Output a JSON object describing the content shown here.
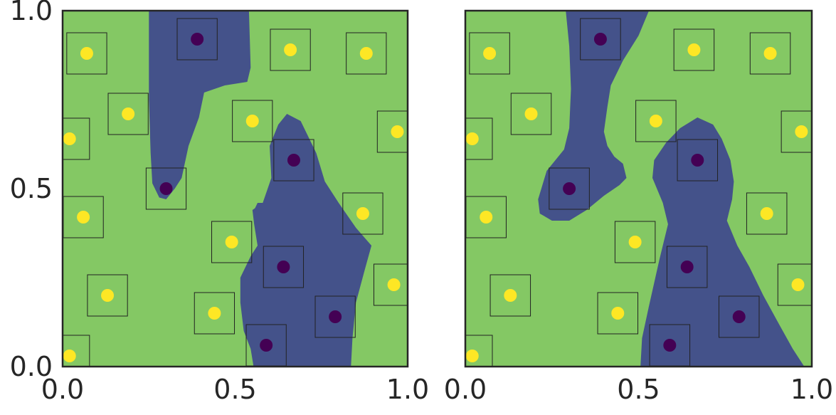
{
  "chart_data": [
    {
      "type": "scatter",
      "xlim": [
        0.0,
        1.0
      ],
      "ylim": [
        0.0,
        1.0
      ],
      "xticks": [
        "0.0",
        "0.5",
        "1.0"
      ],
      "yticks": [
        "0.0",
        "0.5",
        "1.0"
      ],
      "grid": false,
      "region_colors": {
        "positive": "#84c864",
        "negative": "#44528a"
      },
      "point_colors": {
        "positive": "#fde725",
        "negative": "#440154"
      },
      "regions": [
        [
          [
            0.25,
            1.0
          ],
          [
            0.54,
            1.0
          ],
          [
            0.545,
            0.84
          ],
          [
            0.535,
            0.8
          ],
          [
            0.47,
            0.79
          ],
          [
            0.41,
            0.77
          ],
          [
            0.395,
            0.7
          ],
          [
            0.365,
            0.62
          ],
          [
            0.345,
            0.53
          ],
          [
            0.325,
            0.5
          ],
          [
            0.3,
            0.47
          ],
          [
            0.28,
            0.475
          ],
          [
            0.26,
            0.515
          ],
          [
            0.255,
            0.6
          ],
          [
            0.25,
            0.75
          ]
        ],
        [
          [
            0.65,
            0.71
          ],
          [
            0.69,
            0.69
          ],
          [
            0.735,
            0.6
          ],
          [
            0.76,
            0.52
          ],
          [
            0.8,
            0.46
          ],
          [
            0.85,
            0.39
          ],
          [
            0.895,
            0.34
          ],
          [
            0.875,
            0.27
          ],
          [
            0.85,
            0.18
          ],
          [
            0.84,
            0.08
          ],
          [
            0.835,
            -0.01
          ],
          [
            0.555,
            -0.01
          ],
          [
            0.545,
            0.05
          ],
          [
            0.525,
            0.1
          ],
          [
            0.515,
            0.18
          ],
          [
            0.515,
            0.25
          ],
          [
            0.545,
            0.31
          ],
          [
            0.565,
            0.34
          ],
          [
            0.555,
            0.4
          ],
          [
            0.55,
            0.44
          ],
          [
            0.58,
            0.46
          ],
          [
            0.605,
            0.53
          ],
          [
            0.6,
            0.62
          ],
          [
            0.625,
            0.68
          ]
        ],
        [
          [
            0.6,
            0.46
          ],
          [
            0.585,
            0.44
          ],
          [
            0.555,
            0.44
          ],
          [
            0.565,
            0.46
          ]
        ]
      ],
      "points": [
        {
          "x": 0.07,
          "y": 0.88,
          "label": "positive"
        },
        {
          "x": 0.19,
          "y": 0.71,
          "label": "positive"
        },
        {
          "x": 0.02,
          "y": 0.64,
          "label": "positive"
        },
        {
          "x": 0.06,
          "y": 0.42,
          "label": "positive"
        },
        {
          "x": 0.13,
          "y": 0.2,
          "label": "positive"
        },
        {
          "x": 0.02,
          "y": 0.03,
          "label": "positive"
        },
        {
          "x": 0.39,
          "y": 0.92,
          "label": "negative"
        },
        {
          "x": 0.3,
          "y": 0.5,
          "label": "negative"
        },
        {
          "x": 0.66,
          "y": 0.89,
          "label": "positive"
        },
        {
          "x": 0.88,
          "y": 0.88,
          "label": "positive"
        },
        {
          "x": 0.55,
          "y": 0.69,
          "label": "positive"
        },
        {
          "x": 0.97,
          "y": 0.66,
          "label": "positive"
        },
        {
          "x": 0.67,
          "y": 0.58,
          "label": "negative"
        },
        {
          "x": 0.87,
          "y": 0.43,
          "label": "positive"
        },
        {
          "x": 0.49,
          "y": 0.35,
          "label": "positive"
        },
        {
          "x": 0.64,
          "y": 0.28,
          "label": "negative"
        },
        {
          "x": 0.96,
          "y": 0.23,
          "label": "positive"
        },
        {
          "x": 0.44,
          "y": 0.15,
          "label": "positive"
        },
        {
          "x": 0.79,
          "y": 0.14,
          "label": "negative"
        },
        {
          "x": 0.59,
          "y": 0.06,
          "label": "negative"
        }
      ],
      "box_half_width": 0.058
    },
    {
      "type": "scatter",
      "xlim": [
        0.0,
        1.0
      ],
      "ylim": [
        0.0,
        1.0
      ],
      "xticks": [
        "0.0",
        "0.5",
        "1.0"
      ],
      "yticks": [],
      "grid": false,
      "region_colors": {
        "positive": "#84c864",
        "negative": "#44528a"
      },
      "point_colors": {
        "positive": "#fde725",
        "negative": "#440154"
      },
      "regions": [
        [
          [
            0.29,
            1.0
          ],
          [
            0.53,
            1.0
          ],
          [
            0.5,
            0.93
          ],
          [
            0.455,
            0.86
          ],
          [
            0.42,
            0.79
          ],
          [
            0.41,
            0.73
          ],
          [
            0.4,
            0.66
          ],
          [
            0.41,
            0.62
          ],
          [
            0.43,
            0.59
          ],
          [
            0.455,
            0.57
          ],
          [
            0.465,
            0.53
          ],
          [
            0.445,
            0.51
          ],
          [
            0.4,
            0.48
          ],
          [
            0.35,
            0.44
          ],
          [
            0.3,
            0.41
          ],
          [
            0.25,
            0.41
          ],
          [
            0.215,
            0.43
          ],
          [
            0.21,
            0.47
          ],
          [
            0.235,
            0.55
          ],
          [
            0.285,
            0.61
          ],
          [
            0.3,
            0.67
          ],
          [
            0.305,
            0.78
          ],
          [
            0.3,
            0.9
          ]
        ],
        [
          [
            0.67,
            0.7
          ],
          [
            0.715,
            0.68
          ],
          [
            0.74,
            0.64
          ],
          [
            0.765,
            0.58
          ],
          [
            0.775,
            0.52
          ],
          [
            0.77,
            0.47
          ],
          [
            0.755,
            0.41
          ],
          [
            0.785,
            0.34
          ],
          [
            0.82,
            0.28
          ],
          [
            0.86,
            0.2
          ],
          [
            0.905,
            0.12
          ],
          [
            0.945,
            0.05
          ],
          [
            0.985,
            -0.01
          ],
          [
            0.505,
            -0.01
          ],
          [
            0.51,
            0.08
          ],
          [
            0.53,
            0.17
          ],
          [
            0.56,
            0.3
          ],
          [
            0.585,
            0.4
          ],
          [
            0.57,
            0.46
          ],
          [
            0.54,
            0.53
          ],
          [
            0.545,
            0.58
          ],
          [
            0.58,
            0.63
          ],
          [
            0.62,
            0.67
          ]
        ]
      ],
      "points": [
        {
          "x": 0.07,
          "y": 0.88,
          "label": "positive"
        },
        {
          "x": 0.19,
          "y": 0.71,
          "label": "positive"
        },
        {
          "x": 0.02,
          "y": 0.64,
          "label": "positive"
        },
        {
          "x": 0.06,
          "y": 0.42,
          "label": "positive"
        },
        {
          "x": 0.13,
          "y": 0.2,
          "label": "positive"
        },
        {
          "x": 0.02,
          "y": 0.03,
          "label": "positive"
        },
        {
          "x": 0.39,
          "y": 0.92,
          "label": "negative"
        },
        {
          "x": 0.3,
          "y": 0.5,
          "label": "negative"
        },
        {
          "x": 0.66,
          "y": 0.89,
          "label": "positive"
        },
        {
          "x": 0.88,
          "y": 0.88,
          "label": "positive"
        },
        {
          "x": 0.55,
          "y": 0.69,
          "label": "positive"
        },
        {
          "x": 0.97,
          "y": 0.66,
          "label": "positive"
        },
        {
          "x": 0.67,
          "y": 0.58,
          "label": "negative"
        },
        {
          "x": 0.87,
          "y": 0.43,
          "label": "positive"
        },
        {
          "x": 0.49,
          "y": 0.35,
          "label": "positive"
        },
        {
          "x": 0.64,
          "y": 0.28,
          "label": "negative"
        },
        {
          "x": 0.96,
          "y": 0.23,
          "label": "positive"
        },
        {
          "x": 0.44,
          "y": 0.15,
          "label": "positive"
        },
        {
          "x": 0.79,
          "y": 0.14,
          "label": "negative"
        },
        {
          "x": 0.59,
          "y": 0.06,
          "label": "negative"
        }
      ],
      "box_half_width": 0.058
    }
  ]
}
